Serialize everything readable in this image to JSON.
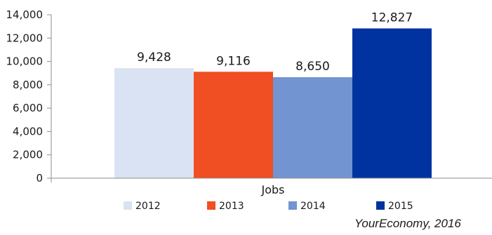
{
  "chart_data": {
    "type": "bar",
    "categories": [
      "Jobs"
    ],
    "series": [
      {
        "name": "2012",
        "values": [
          9428
        ],
        "label": "9,428",
        "color": "#dae3f3"
      },
      {
        "name": "2013",
        "values": [
          9116
        ],
        "label": "9,116",
        "color": "#f04e23"
      },
      {
        "name": "2014",
        "values": [
          8650
        ],
        "label": "8,650",
        "color": "#7294d0"
      },
      {
        "name": "2015",
        "values": [
          12827
        ],
        "label": "12,827",
        "color": "#0033a0"
      }
    ],
    "ylim": [
      0,
      14000
    ],
    "yticks": [
      {
        "value": 0,
        "label": "0"
      },
      {
        "value": 2000,
        "label": "2,000"
      },
      {
        "value": 4000,
        "label": "4,000"
      },
      {
        "value": 6000,
        "label": "6,000"
      },
      {
        "value": 8000,
        "label": "8,000"
      },
      {
        "value": 10000,
        "label": "10,000"
      },
      {
        "value": 12000,
        "label": "12,000"
      },
      {
        "value": 14000,
        "label": "14,000"
      }
    ],
    "xlabel": "",
    "ylabel": "",
    "title": "",
    "grid": false,
    "legend_position": "bottom"
  },
  "source": "YourEconomy, 2016"
}
